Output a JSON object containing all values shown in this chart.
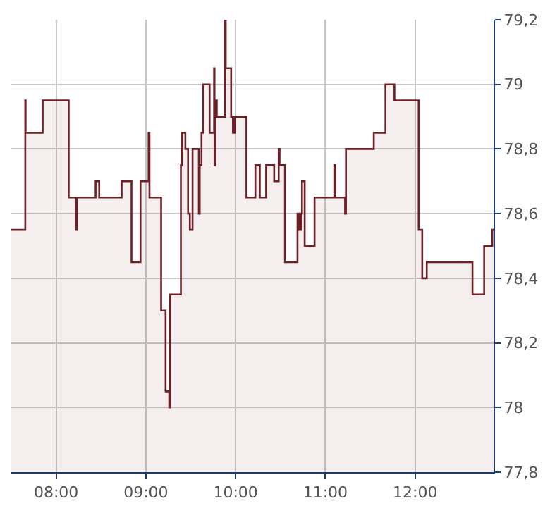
{
  "chart_data": {
    "type": "area",
    "x": [
      7.5,
      7.656,
      7.656,
      7.66,
      7.66,
      7.85,
      7.85,
      8.14,
      8.14,
      8.22,
      8.22,
      8.23,
      8.23,
      8.44,
      8.44,
      8.48,
      8.48,
      8.73,
      8.73,
      8.84,
      8.84,
      8.94,
      8.94,
      9.03,
      9.03,
      9.04,
      9.04,
      9.17,
      9.17,
      9.22,
      9.22,
      9.26,
      9.26,
      9.27,
      9.27,
      9.39,
      9.39,
      9.4,
      9.4,
      9.44,
      9.44,
      9.47,
      9.47,
      9.49,
      9.49,
      9.52,
      9.52,
      9.59,
      9.59,
      9.6,
      9.6,
      9.62,
      9.62,
      9.64,
      9.64,
      9.71,
      9.71,
      9.76,
      9.76,
      9.765,
      9.765,
      9.77,
      9.77,
      9.79,
      9.79,
      9.88,
      9.88,
      9.89,
      9.89,
      9.95,
      9.95,
      9.97,
      9.97,
      9.99,
      9.99,
      10.12,
      10.12,
      10.22,
      10.22,
      10.27,
      10.27,
      10.34,
      10.34,
      10.43,
      10.43,
      10.48,
      10.48,
      10.49,
      10.49,
      10.55,
      10.55,
      10.69,
      10.69,
      10.71,
      10.71,
      10.73,
      10.73,
      10.74,
      10.74,
      10.77,
      10.77,
      10.88,
      10.88,
      11.1,
      11.1,
      11.11,
      11.11,
      11.22,
      11.22,
      11.23,
      11.23,
      11.54,
      11.54,
      11.67,
      11.67,
      11.77,
      11.77,
      12.04,
      12.04,
      12.08,
      12.08,
      12.13,
      12.13,
      12.64,
      12.64,
      12.77,
      12.77,
      12.86,
      12.86,
      12.875
    ],
    "series": [
      {
        "color": "#6e2027",
        "values": [
          78.55,
          78.55,
          78.95,
          78.95,
          78.85,
          78.85,
          78.95,
          78.95,
          78.65,
          78.65,
          78.55,
          78.55,
          78.65,
          78.65,
          78.7,
          78.7,
          78.65,
          78.65,
          78.7,
          78.7,
          78.45,
          78.45,
          78.7,
          78.7,
          78.85,
          78.85,
          78.65,
          78.65,
          78.3,
          78.3,
          78.05,
          78.05,
          78.0,
          78.0,
          78.35,
          78.35,
          78.75,
          78.75,
          78.85,
          78.85,
          78.8,
          78.8,
          78.6,
          78.6,
          78.55,
          78.55,
          78.8,
          78.8,
          78.6,
          78.6,
          78.75,
          78.75,
          78.85,
          78.85,
          79.0,
          79.0,
          78.85,
          78.85,
          79.05,
          79.05,
          78.75,
          78.75,
          78.95,
          78.95,
          78.9,
          78.9,
          79.2,
          79.2,
          79.05,
          79.05,
          78.9,
          78.9,
          78.85,
          78.85,
          78.9,
          78.9,
          78.65,
          78.65,
          78.75,
          78.75,
          78.65,
          78.65,
          78.75,
          78.75,
          78.7,
          78.7,
          78.8,
          78.8,
          78.75,
          78.75,
          78.45,
          78.45,
          78.6,
          78.6,
          78.55,
          78.55,
          78.6,
          78.6,
          78.7,
          78.7,
          78.5,
          78.5,
          78.65,
          78.65,
          78.75,
          78.75,
          78.65,
          78.65,
          78.6,
          78.6,
          78.8,
          78.8,
          78.85,
          78.85,
          79.0,
          79.0,
          78.95,
          78.95,
          78.55,
          78.55,
          78.4,
          78.4,
          78.45,
          78.45,
          78.35,
          78.35,
          78.5,
          78.5,
          78.55,
          78.55
        ]
      }
    ],
    "xlim": [
      7.5,
      12.875
    ],
    "xticks": [
      {
        "value": 8,
        "label": "08:00"
      },
      {
        "value": 9,
        "label": "09:00"
      },
      {
        "value": 10,
        "label": "10:00"
      },
      {
        "value": 11,
        "label": "11:00"
      },
      {
        "value": 12,
        "label": "12:00"
      }
    ],
    "ylim": [
      77.8,
      79.2
    ],
    "yticks": [
      {
        "value": 77.8,
        "label": "77,8"
      },
      {
        "value": 78,
        "label": "78"
      },
      {
        "value": 78.2,
        "label": "78,2"
      },
      {
        "value": 78.4,
        "label": "78,4"
      },
      {
        "value": 78.6,
        "label": "78,6"
      },
      {
        "value": 78.8,
        "label": "78,8"
      },
      {
        "value": 79,
        "label": "79"
      },
      {
        "value": 79.2,
        "label": "79,2"
      }
    ],
    "grid": true
  }
}
